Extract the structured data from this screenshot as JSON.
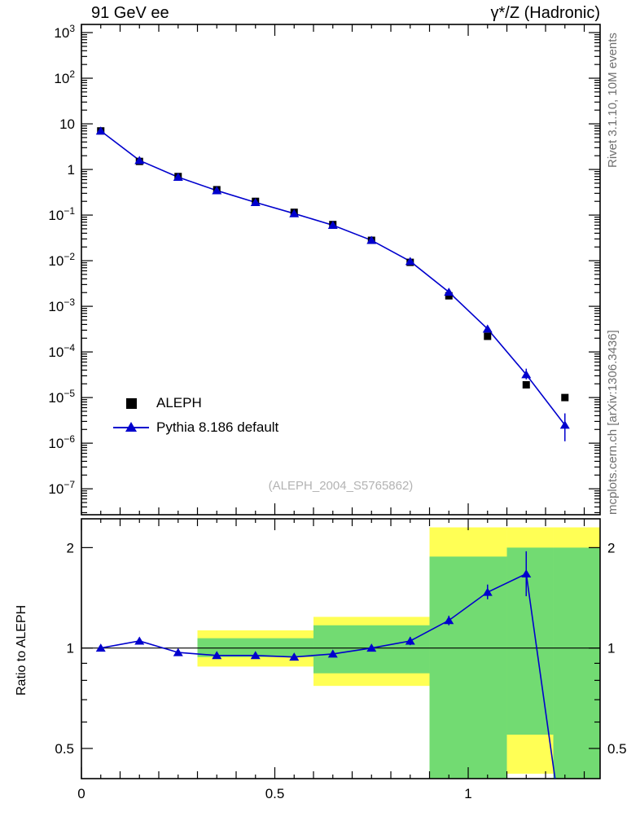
{
  "header": {
    "left_title": "91 GeV ee",
    "right_title": "γ*/Z (Hadronic)"
  },
  "side_notes": {
    "right_top": "Rivet 3.1.10,  10M events",
    "right_bottom": "mcplots.cern.ch [arXiv:1306.3436]"
  },
  "analysis_ref": "(ALEPH_2004_S5765862)",
  "ratio_axis_label": "Ratio to ALEPH",
  "legend": {
    "items": [
      {
        "label": "ALEPH",
        "marker": "square",
        "color": "#000000"
      },
      {
        "label": "Pythia 8.186 default",
        "marker": "triangle-line",
        "color": "#0000cd"
      }
    ]
  },
  "colors": {
    "mc_blue": "#0000cd",
    "data_black": "#000000",
    "band_yellow": "#ffff55",
    "band_green": "#72db72",
    "frame": "#000000",
    "side_gray": "#707070",
    "watermark_gray": "#b3b3b3"
  },
  "chart_data": [
    {
      "type": "scatter",
      "panel": "main",
      "yscale": "log",
      "xlim": [
        0,
        1.341
      ],
      "ylim": [
        2.7e-08,
        1510
      ],
      "x": [
        0.05,
        0.15,
        0.25,
        0.35,
        0.45,
        0.55,
        0.65,
        0.75,
        0.85,
        0.95,
        1.05,
        1.15,
        1.25
      ],
      "series": [
        {
          "name": "ALEPH",
          "marker": "square",
          "color": "#000000",
          "values": [
            7.0,
            1.5,
            0.7,
            0.36,
            0.2,
            0.115,
            0.062,
            0.028,
            0.0092,
            0.0017,
            0.00022,
            1.9e-05,
            1e-05
          ]
        },
        {
          "name": "Pythia 8.186 default",
          "marker": "triangle",
          "color": "#0000cd",
          "values": [
            7.0,
            1.58,
            0.68,
            0.345,
            0.19,
            0.108,
            0.06,
            0.028,
            0.0097,
            0.00205,
            0.00032,
            3.2e-05,
            2.5e-06
          ],
          "err_lo": [
            null,
            null,
            null,
            null,
            null,
            null,
            null,
            null,
            null,
            null,
            0.00029,
            2.5e-05,
            1.1e-06
          ],
          "err_hi": [
            null,
            null,
            null,
            null,
            null,
            null,
            null,
            null,
            null,
            null,
            0.00036,
            4.3e-05,
            4.5e-06
          ]
        }
      ],
      "ytick_exponents": [
        3,
        2,
        1,
        0,
        -1,
        -2,
        -3,
        -4,
        -5,
        -6,
        -7
      ],
      "xticks": [
        {
          "v": 0,
          "label": "0"
        },
        {
          "v": 0.5,
          "label": "0.5"
        },
        {
          "v": 1,
          "label": "1"
        }
      ]
    },
    {
      "type": "line",
      "panel": "ratio",
      "name": "Ratio to ALEPH",
      "yscale": "log",
      "xlim": [
        0,
        1.341
      ],
      "ylim": [
        0.406,
        2.44
      ],
      "reference_line": 1,
      "x": [
        0.05,
        0.15,
        0.25,
        0.35,
        0.45,
        0.55,
        0.65,
        0.75,
        0.85,
        0.95,
        1.05,
        1.15,
        1.25
      ],
      "values": [
        1.0,
        1.05,
        0.97,
        0.95,
        0.95,
        0.94,
        0.96,
        1.0,
        1.05,
        1.21,
        1.47,
        1.67,
        0.25
      ],
      "err_lo": [
        0.98,
        1.03,
        0.95,
        0.93,
        0.93,
        0.92,
        0.94,
        0.98,
        1.02,
        1.17,
        1.4,
        1.43,
        null
      ],
      "err_hi": [
        1.02,
        1.07,
        0.99,
        0.97,
        0.97,
        0.96,
        0.98,
        1.02,
        1.08,
        1.25,
        1.55,
        1.95,
        null
      ],
      "yticks": [
        {
          "v": 0.5,
          "label": "0.5"
        },
        {
          "v": 1,
          "label": "1"
        },
        {
          "v": 2,
          "label": "2"
        }
      ],
      "minor_yticks": [
        0.4,
        0.6,
        0.7,
        0.8,
        0.9
      ],
      "xticks": [
        {
          "v": 0,
          "label": "0"
        },
        {
          "v": 0.5,
          "label": "0.5"
        },
        {
          "v": 1,
          "label": "1"
        }
      ],
      "bands": [
        {
          "x0": 0.3,
          "x1": 0.6,
          "yellow": [
            0.88,
            1.13
          ],
          "green": [
            0.94,
            1.07
          ]
        },
        {
          "x0": 0.6,
          "x1": 0.9,
          "yellow": [
            0.77,
            1.24
          ],
          "green": [
            0.84,
            1.17
          ]
        },
        {
          "x0": 0.9,
          "x1": 1.1,
          "yellow": [
            0.33,
            2.3
          ],
          "green": [
            0.33,
            1.88
          ]
        },
        {
          "x0": 1.1,
          "x1": 1.22,
          "yellow": [
            0.42,
            2.3
          ],
          "green": [
            0.55,
            2.0
          ]
        },
        {
          "x0": 1.22,
          "x1": 1.341,
          "yellow": [
            0.33,
            2.3
          ],
          "green": [
            0.33,
            2.0
          ]
        }
      ]
    }
  ]
}
